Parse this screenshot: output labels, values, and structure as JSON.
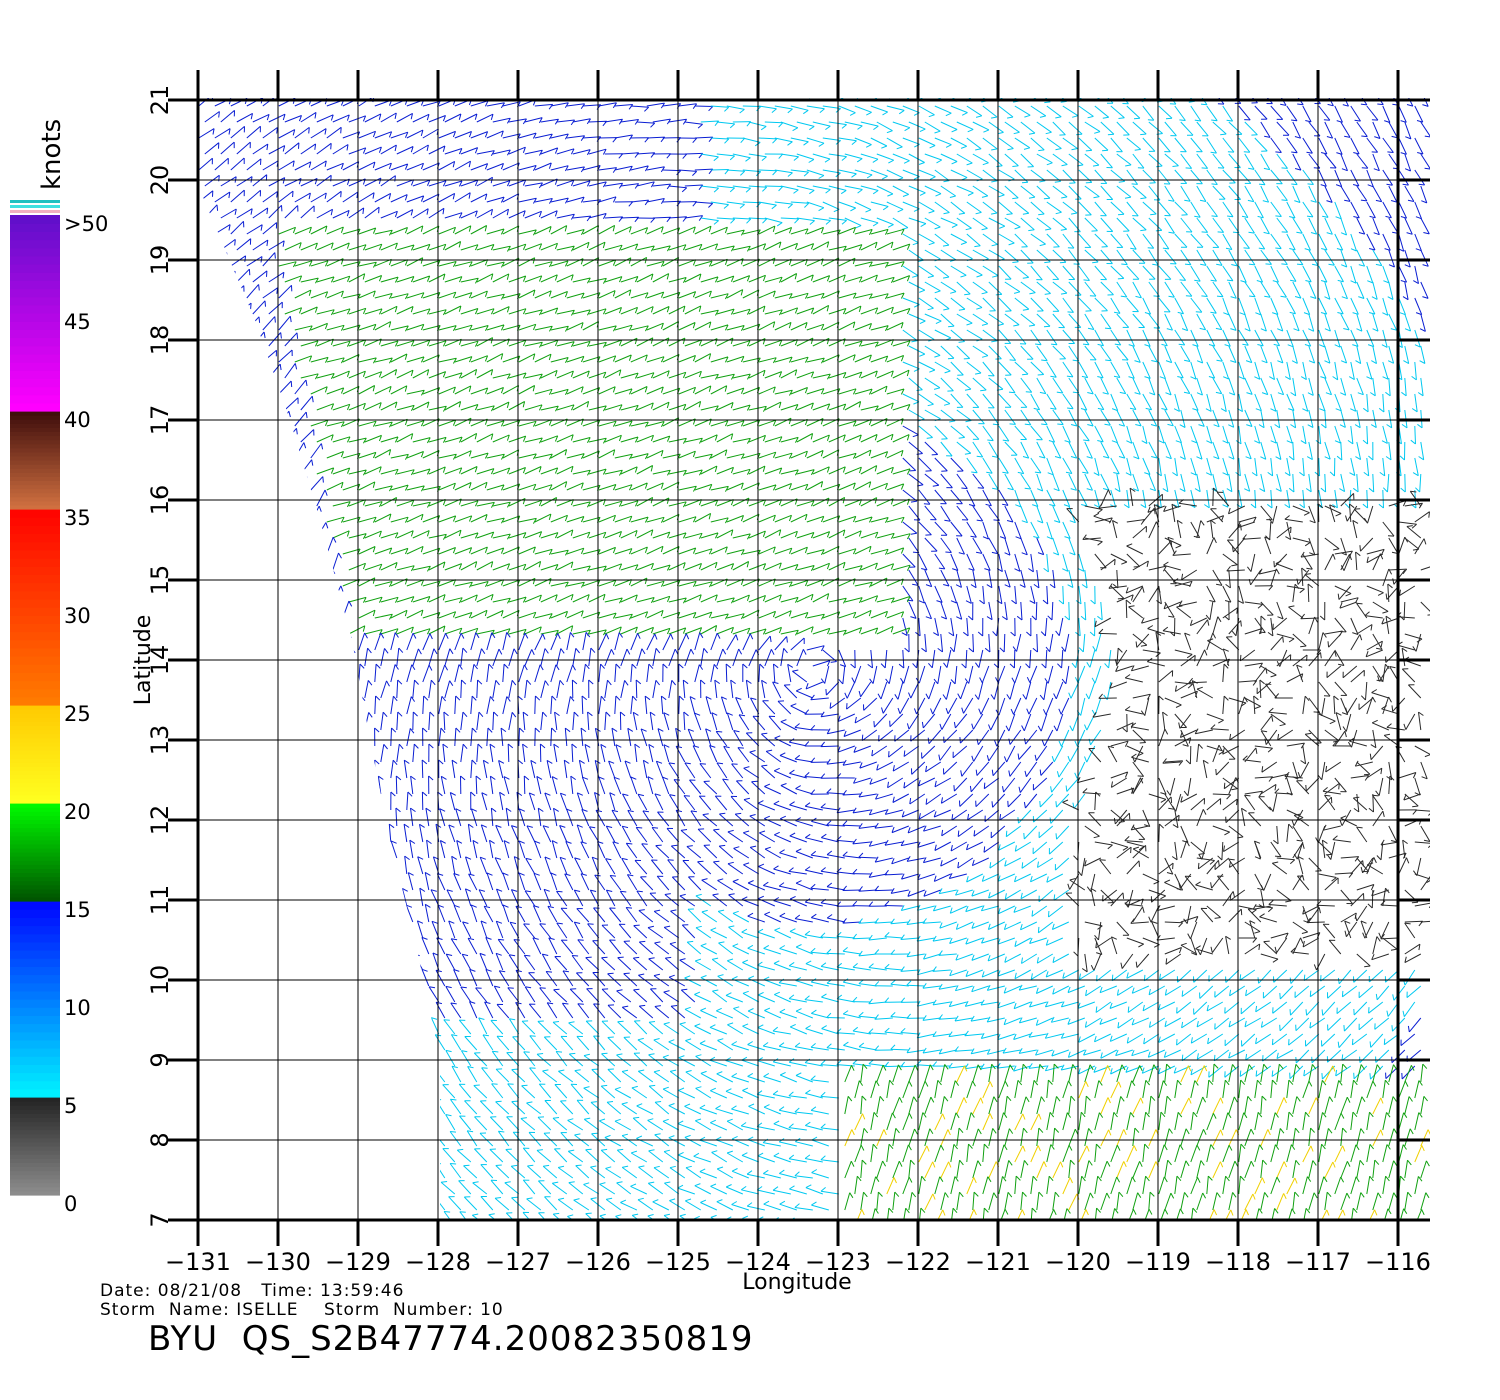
{
  "chart_data": {
    "type": "vector-field",
    "xlabel": "Longitude",
    "ylabel": "Latitude",
    "xlim": [
      -131,
      -116
    ],
    "ylim": [
      7,
      21
    ],
    "x_ticks": [
      "−131",
      "−130",
      "−129",
      "−128",
      "−127",
      "−126",
      "−125",
      "−124",
      "−123",
      "−122",
      "−121",
      "−120",
      "−119",
      "−118",
      "−117",
      "−116"
    ],
    "y_ticks": [
      "7",
      "8",
      "9",
      "10",
      "11",
      "12",
      "13",
      "14",
      "15",
      "16",
      "17",
      "18",
      "19",
      "20",
      "21"
    ],
    "grid": true,
    "colorbar": {
      "unit": "knots",
      "labels": [
        ">50",
        "45",
        "40",
        "35",
        "30",
        "25",
        "20",
        "15",
        "10",
        "5",
        "0"
      ],
      "segments": [
        {
          "range": [
            0,
            5
          ],
          "colors": [
            "#8c8c8c",
            "#202020"
          ]
        },
        {
          "range": [
            5,
            15
          ],
          "colors": [
            "#00f0ff",
            "#0000ff"
          ]
        },
        {
          "range": [
            15,
            20
          ],
          "colors": [
            "#005500",
            "#00ff00"
          ]
        },
        {
          "range": [
            20,
            25
          ],
          "colors": [
            "#ffff20",
            "#ffc800"
          ]
        },
        {
          "range": [
            25,
            35
          ],
          "colors": [
            "#ff7a00",
            "#ff0000"
          ]
        },
        {
          "range": [
            35,
            40
          ],
          "colors": [
            "#d07040",
            "#3a0a0a"
          ]
        },
        {
          "range": [
            40,
            50
          ],
          "colors": [
            "#ff00ff",
            "#5a10c8"
          ]
        }
      ]
    },
    "storm_center": {
      "lon": -123.3,
      "lat": 13.9
    },
    "wind_colors": {
      "calm": "#2a2a2a",
      "light": "#00c8f0",
      "moderate": "#0a1ed2",
      "fresh": "#10a010",
      "strong": "#f0d000",
      "gale": "#e05000"
    }
  },
  "footer": {
    "date_line": "Date: 08/21/08   Time: 13:59:46",
    "storm_line": "Storm  Name: ISELLE    Storm  Number: 10",
    "product_line": "BYU  QS_S2B47774.20082350819"
  }
}
